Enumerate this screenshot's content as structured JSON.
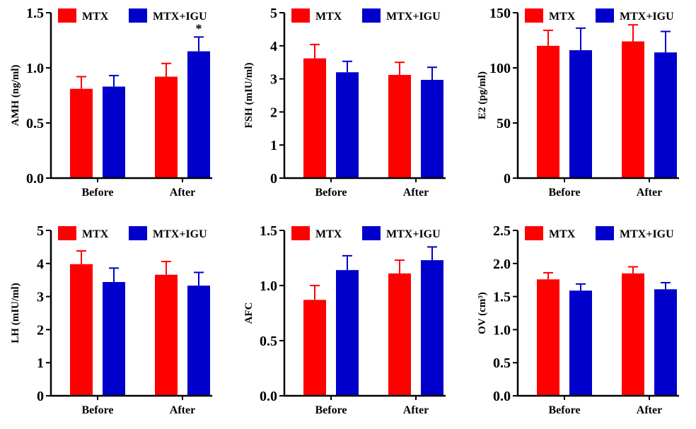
{
  "legend": {
    "series": [
      "MTX",
      "MTX+IGU"
    ]
  },
  "colors": {
    "MTX": "#ff0000",
    "MTX+IGU": "#0000cc"
  },
  "chart_data": [
    {
      "type": "bar",
      "categories": [
        "Before",
        "After"
      ],
      "ylabel": "AMH (ng/ml)",
      "ylim": [
        0,
        1.5
      ],
      "yticks": [
        "0.0",
        "0.5",
        "1.0",
        "1.5"
      ],
      "series": [
        {
          "name": "MTX",
          "values": [
            0.81,
            0.92
          ],
          "errors": [
            0.11,
            0.12
          ]
        },
        {
          "name": "MTX+IGU",
          "values": [
            0.83,
            1.15
          ],
          "errors": [
            0.1,
            0.13
          ]
        }
      ],
      "annotations": [
        {
          "category": "After",
          "series": "MTX+IGU",
          "text": "*"
        }
      ],
      "legend": "top"
    },
    {
      "type": "bar",
      "categories": [
        "Before",
        "After"
      ],
      "ylabel": "FSH (mIU/ml)",
      "ylim": [
        0,
        5
      ],
      "yticks": [
        "0",
        "1",
        "2",
        "3",
        "4",
        "5"
      ],
      "series": [
        {
          "name": "MTX",
          "values": [
            3.62,
            3.12
          ],
          "errors": [
            0.42,
            0.38
          ]
        },
        {
          "name": "MTX+IGU",
          "values": [
            3.2,
            2.97
          ],
          "errors": [
            0.33,
            0.38
          ]
        }
      ],
      "annotations": [],
      "legend": "top"
    },
    {
      "type": "bar",
      "categories": [
        "Before",
        "After"
      ],
      "ylabel": "E2 (pg/ml)",
      "ylim": [
        0,
        150
      ],
      "yticks": [
        "0",
        "50",
        "100",
        "150"
      ],
      "series": [
        {
          "name": "MTX",
          "values": [
            120,
            124
          ],
          "errors": [
            14,
            15
          ]
        },
        {
          "name": "MTX+IGU",
          "values": [
            116,
            114
          ],
          "errors": [
            20,
            19
          ]
        }
      ],
      "annotations": [],
      "legend": "top"
    },
    {
      "type": "bar",
      "categories": [
        "Before",
        "After"
      ],
      "ylabel": "LH (mIU/ml)",
      "ylim": [
        0,
        5
      ],
      "yticks": [
        "0",
        "1",
        "2",
        "3",
        "4",
        "5"
      ],
      "series": [
        {
          "name": "MTX",
          "values": [
            3.98,
            3.66
          ],
          "errors": [
            0.4,
            0.4
          ]
        },
        {
          "name": "MTX+IGU",
          "values": [
            3.44,
            3.33
          ],
          "errors": [
            0.42,
            0.4
          ]
        }
      ],
      "annotations": [],
      "legend": "top"
    },
    {
      "type": "bar",
      "categories": [
        "Before",
        "After"
      ],
      "ylabel": "AFC",
      "ylim": [
        0,
        1.5
      ],
      "yticks": [
        "0.0",
        "0.5",
        "1.0",
        "1.5"
      ],
      "series": [
        {
          "name": "MTX",
          "values": [
            0.87,
            1.11
          ],
          "errors": [
            0.13,
            0.12
          ]
        },
        {
          "name": "MTX+IGU",
          "values": [
            1.14,
            1.23
          ],
          "errors": [
            0.13,
            0.12
          ]
        }
      ],
      "annotations": [],
      "legend": "top"
    },
    {
      "type": "bar",
      "categories": [
        "Before",
        "After"
      ],
      "ylabel": "OV (cm³)",
      "ylim": [
        0,
        2.5
      ],
      "yticks": [
        "0.0",
        "0.5",
        "1.0",
        "1.5",
        "2.0",
        "2.5"
      ],
      "series": [
        {
          "name": "MTX",
          "values": [
            1.76,
            1.85
          ],
          "errors": [
            0.1,
            0.1
          ]
        },
        {
          "name": "MTX+IGU",
          "values": [
            1.59,
            1.61
          ],
          "errors": [
            0.1,
            0.1
          ]
        }
      ],
      "annotations": [],
      "legend": "top"
    }
  ]
}
